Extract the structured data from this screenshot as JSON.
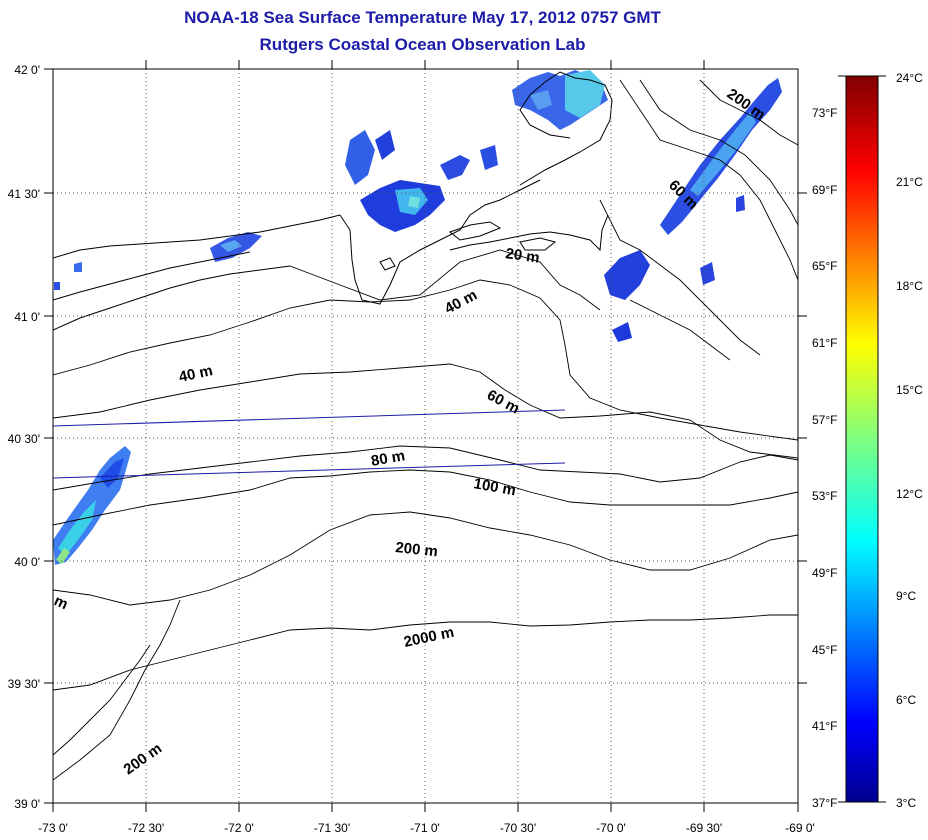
{
  "title_line1": "NOAA-18 Sea Surface Temperature May 17, 2012 0757 GMT",
  "title_line2": "Rutgers Coastal Ocean Observation Lab",
  "map": {
    "lon_ticks": [
      "-73 0'",
      "-72 30'",
      "-72 0'",
      "-71 30'",
      "-71 0'",
      "-70 30'",
      "-70 0'",
      "-69 30'",
      "-69 0'"
    ],
    "lat_ticks": [
      "42 0'",
      "41 30'",
      "41 0'",
      "40 30'",
      "40 0'",
      "39 30'",
      "39 0'"
    ],
    "depth_labels": [
      {
        "text": "20 m"
      },
      {
        "text": "40 m"
      },
      {
        "text": "40 m"
      },
      {
        "text": "60 m"
      },
      {
        "text": "80 m"
      },
      {
        "text": "100 m"
      },
      {
        "text": "200 m"
      },
      {
        "text": "2000 m"
      },
      {
        "text": "200 m"
      },
      {
        "text": "200 m"
      },
      {
        "text": "60 m"
      },
      {
        "text": "m"
      }
    ]
  },
  "colorbar": {
    "celsius": [
      "24°C",
      "21°C",
      "18°C",
      "15°C",
      "12°C",
      "9°C",
      "6°C",
      "3°C"
    ],
    "fahrenheit": [
      "73°F",
      "69°F",
      "65°F",
      "61°F",
      "57°F",
      "53°F",
      "49°F",
      "45°F",
      "41°F",
      "37°F"
    ],
    "range_c": [
      3,
      24
    ]
  }
}
